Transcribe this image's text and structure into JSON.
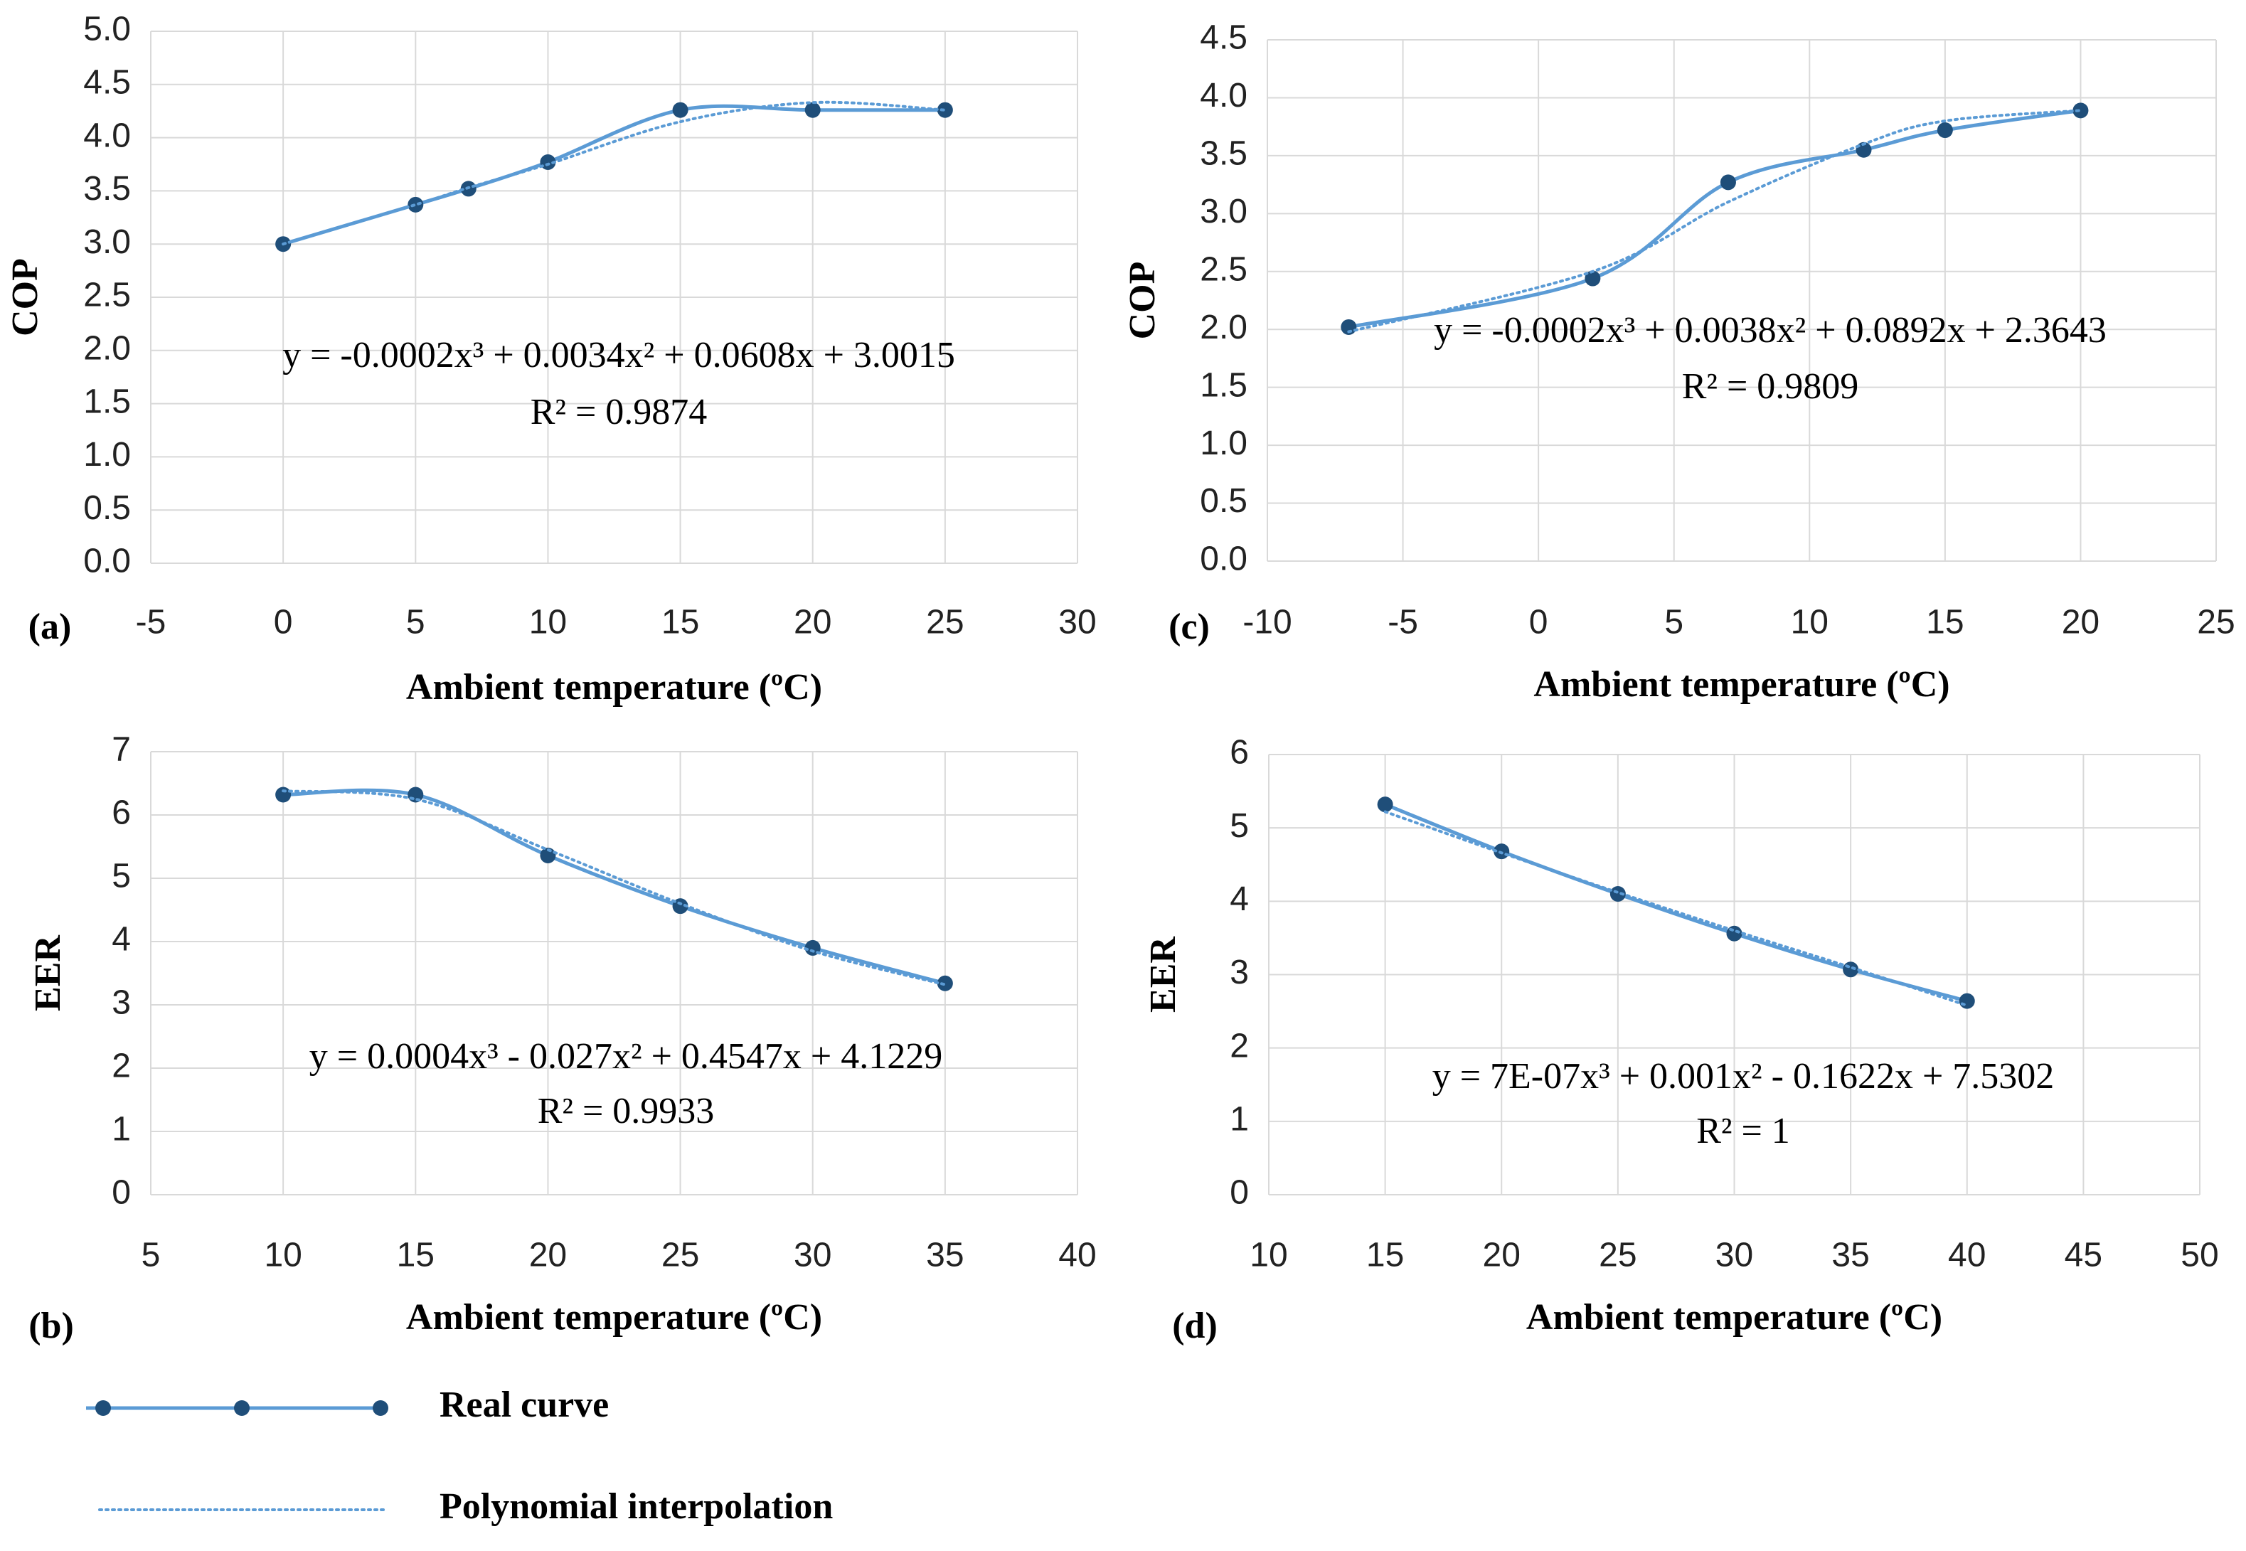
{
  "chart_data": [
    {
      "type": "line",
      "panel": "(a)",
      "xlabel": "Ambient temperature (ºC)",
      "ylabel": "COP",
      "equation": "y = -0.0002x³ + 0.0034x² + 0.0608x + 3.0015",
      "r2": "R² = 0.9874",
      "x": [
        0,
        5,
        7,
        10,
        15,
        20,
        25
      ],
      "series": [
        {
          "color": "#5b9bd5",
          "marker_color": "#1f4e79",
          "values": [
            3.0,
            3.37,
            3.52,
            3.77,
            4.26,
            4.26,
            4.26
          ]
        },
        {
          "color": "#5b9bd5",
          "style": "dotted",
          "values": [
            3.0,
            3.37,
            3.53,
            3.75,
            4.15,
            4.33,
            4.26
          ]
        }
      ],
      "xlim": [
        -5,
        30
      ],
      "xticks": [
        -5,
        0,
        5,
        10,
        15,
        20,
        25,
        30
      ],
      "ylim": [
        0,
        5
      ],
      "yticks": [
        {
          "value": 0,
          "label": "0.0"
        },
        0.5,
        {
          "value": 1,
          "label": "1.0"
        },
        1.5,
        {
          "value": 2,
          "label": "2.0"
        },
        2.5,
        {
          "value": 3,
          "label": "3.0"
        },
        3.5,
        {
          "value": 4,
          "label": "4.0"
        },
        4.5,
        {
          "value": 5,
          "label": "5.0"
        }
      ],
      "grid": true
    },
    {
      "type": "line",
      "panel": "(c)",
      "xlabel": "Ambient temperature (ºC)",
      "ylabel": "COP",
      "equation": "y = -0.0002x³ + 0.0038x² + 0.0892x + 2.3643",
      "r2": "R² = 0.9809",
      "x": [
        -7,
        2,
        7,
        12,
        15,
        20
      ],
      "series": [
        {
          "color": "#5b9bd5",
          "marker_color": "#1f4e79",
          "values": [
            2.02,
            2.44,
            3.27,
            3.55,
            3.72,
            3.89
          ]
        },
        {
          "color": "#5b9bd5",
          "style": "dotted",
          "values": [
            1.98,
            2.5,
            3.1,
            3.6,
            3.8,
            3.89
          ]
        }
      ],
      "xlim": [
        -10,
        25
      ],
      "xticks": [
        -10,
        -5,
        0,
        5,
        10,
        15,
        20,
        25
      ],
      "ylim": [
        0,
        4.5
      ],
      "yticks": [
        {
          "value": 0,
          "label": "0.0"
        },
        0.5,
        {
          "value": 1,
          "label": "1.0"
        },
        1.5,
        {
          "value": 2,
          "label": "2.0"
        },
        2.5,
        {
          "value": 3,
          "label": "3.0"
        },
        3.5,
        {
          "value": 4,
          "label": "4.0"
        },
        4.5
      ],
      "grid": true
    },
    {
      "type": "line",
      "panel": "(b)",
      "xlabel": "Ambient temperature (ºC)",
      "ylabel": "EER",
      "equation": "y = 0.0004x³ - 0.027x² + 0.4547x + 4.1229",
      "r2": "R² = 0.9933",
      "x": [
        10,
        15,
        20,
        25,
        30,
        35
      ],
      "series": [
        {
          "color": "#5b9bd5",
          "marker_color": "#1f4e79",
          "values": [
            6.32,
            6.32,
            5.36,
            4.56,
            3.9,
            3.34
          ]
        },
        {
          "color": "#5b9bd5",
          "style": "dotted",
          "values": [
            6.38,
            6.25,
            5.45,
            4.6,
            3.85,
            3.32
          ]
        }
      ],
      "xlim": [
        5,
        40
      ],
      "xticks": [
        5,
        10,
        15,
        20,
        25,
        30,
        35,
        40
      ],
      "ylim": [
        0,
        7
      ],
      "yticks": [
        0,
        1,
        2,
        3,
        4,
        5,
        6,
        7
      ],
      "grid": true
    },
    {
      "type": "line",
      "panel": "(d)",
      "xlabel": "Ambient temperature (ºC)",
      "ylabel": "EER",
      "equation": "y = 7E-07x³ + 0.001x² - 0.1622x + 7.5302",
      "r2": "R² = 1",
      "x": [
        15,
        20,
        25,
        30,
        35,
        40
      ],
      "series": [
        {
          "color": "#5b9bd5",
          "marker_color": "#1f4e79",
          "values": [
            5.32,
            4.68,
            4.1,
            3.56,
            3.07,
            2.64
          ]
        },
        {
          "color": "#5b9bd5",
          "style": "dotted",
          "values": [
            5.22,
            4.66,
            4.12,
            3.6,
            3.1,
            2.58
          ]
        }
      ],
      "xlim": [
        10,
        50
      ],
      "xticks": [
        10,
        15,
        20,
        25,
        30,
        35,
        40,
        45,
        50
      ],
      "ylim": [
        0,
        6
      ],
      "yticks": [
        0,
        1,
        2,
        3,
        4,
        5,
        6
      ],
      "grid": true
    }
  ],
  "legend": [
    "Real curve",
    "Polynomial interpolation"
  ]
}
